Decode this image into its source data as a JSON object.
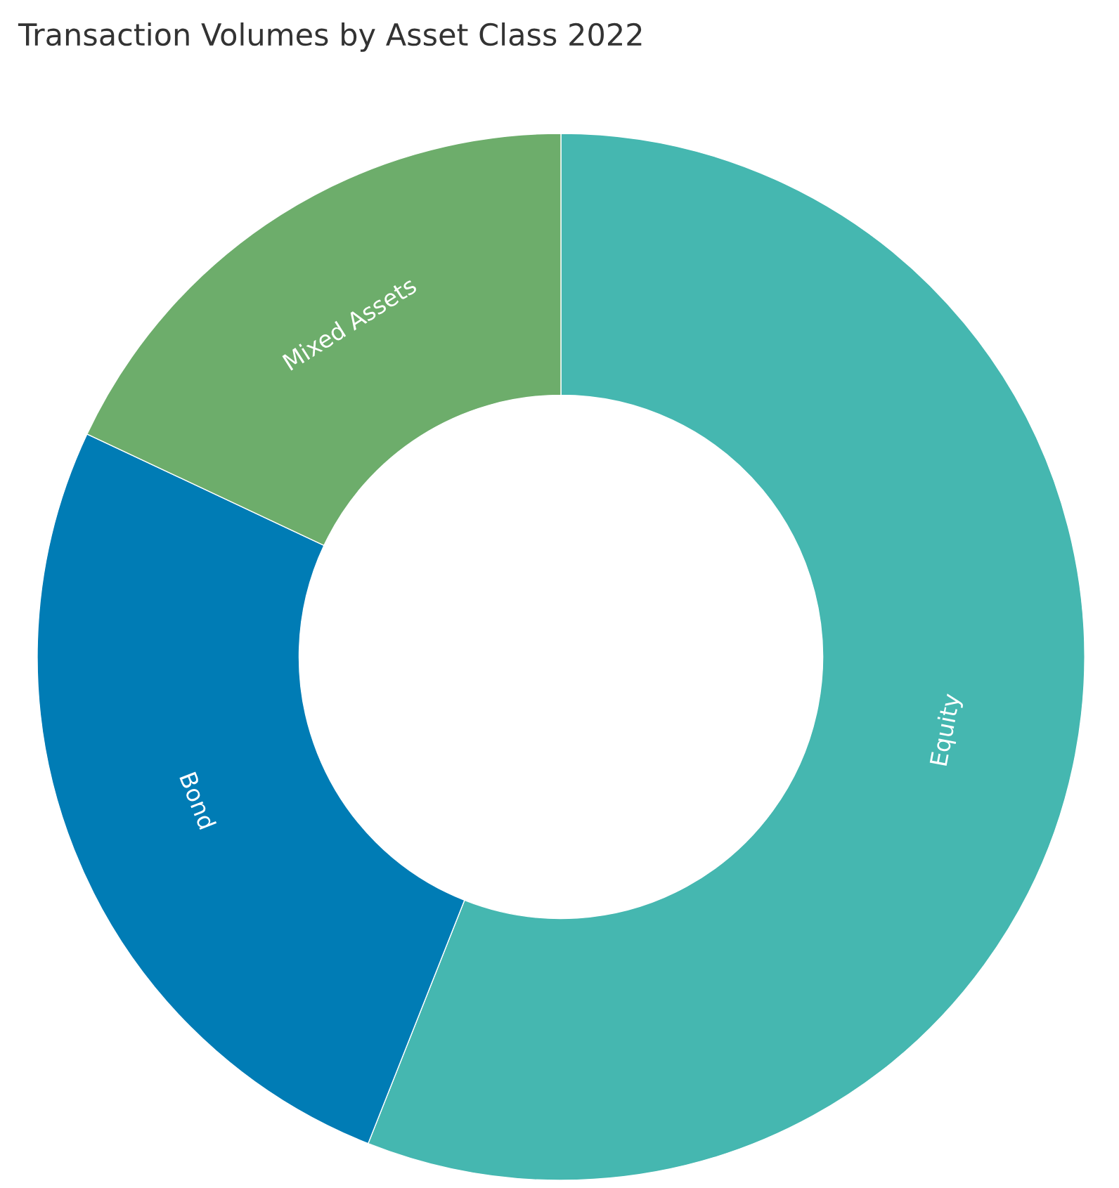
{
  "chart_data": {
    "type": "donut",
    "title": "Transaction Volumes by Asset Class 2022",
    "categories": [
      "Equity",
      "Bond",
      "Mixed Assets"
    ],
    "values": [
      56,
      26,
      18
    ],
    "colors": [
      "#45b7b0",
      "#007cb5",
      "#6dad6b"
    ]
  }
}
